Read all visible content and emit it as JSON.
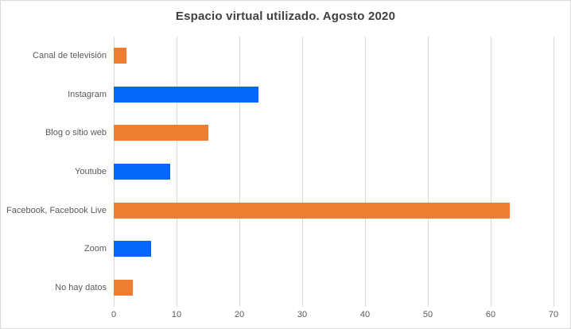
{
  "title": "Espacio virtual utilizado. Agosto 2020",
  "colors": {
    "orange": "#ED7D31",
    "blue": "#0566FA",
    "gridline": "#D9D9D9",
    "axis_text": "#595959",
    "title_text": "#404040",
    "chart_border": "#D9D9D9",
    "background": "#FFFFFF"
  },
  "chart_data": {
    "type": "bar",
    "orientation": "horizontal",
    "title": "Espacio virtual utilizado. Agosto 2020",
    "categories": [
      "Canal de televisión",
      "Instagram",
      "Blog o sitio web",
      "Youtube",
      "Facebook, Facebook Live",
      "Zoom",
      "No hay datos"
    ],
    "values": [
      2,
      23,
      15,
      9,
      63,
      6,
      3
    ],
    "bar_colors": [
      "#ED7D31",
      "#0566FA",
      "#ED7D31",
      "#0566FA",
      "#ED7D31",
      "#0566FA",
      "#ED7D31"
    ],
    "xlabel": "",
    "ylabel": "",
    "xlim": [
      0,
      70
    ],
    "x_ticks": [
      "0",
      "10",
      "20",
      "30",
      "40",
      "50",
      "60",
      "70"
    ],
    "grid": true,
    "legend": false,
    "axis_label_position": "left",
    "tick_label_position": "bottom"
  }
}
